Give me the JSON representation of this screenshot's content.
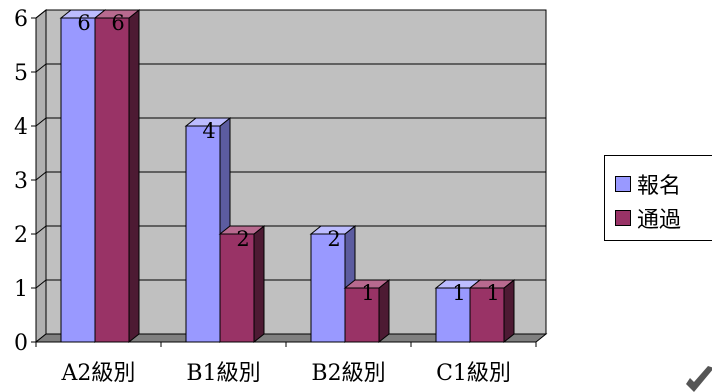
{
  "chart_data": {
    "type": "bar",
    "categories": [
      "A2級別",
      "B1級別",
      "B2級別",
      "C1級別"
    ],
    "series": [
      {
        "name": "報名",
        "values": [
          6,
          4,
          2,
          1
        ],
        "color": "#9999ff",
        "side_color": "#5c5ca0",
        "top_color": "#bcbcff"
      },
      {
        "name": "通過",
        "values": [
          6,
          2,
          1,
          1
        ],
        "color": "#993366",
        "side_color": "#4d1a33",
        "top_color": "#b86a8f"
      }
    ],
    "yticks": [
      "0",
      "1",
      "2",
      "3",
      "4",
      "5",
      "6"
    ],
    "ylim": [
      0,
      6
    ],
    "grid": true,
    "legend_position": "right",
    "plot_bg": "#c0c0c0",
    "floor_color": "#808080"
  }
}
